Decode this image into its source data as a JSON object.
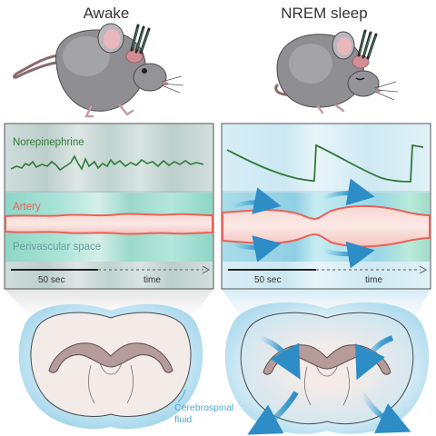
{
  "titles": {
    "awake": "Awake",
    "sleep": "NREM sleep"
  },
  "labels": {
    "norepinephrine": "Norepinephrine",
    "artery": "Artery",
    "perivascular": "Perivascular space",
    "time_scale": "50 sec",
    "time": "time",
    "csf_line1": "Cerebrospinal",
    "csf_line2": "fluid"
  },
  "colors": {
    "norepinephrine_trace": "#2f7a3a",
    "artery_wall": "#e8625a",
    "artery_fill": "#f6c9c3",
    "csf": "#7ec8e3",
    "panel_awake": "#c2d6d4",
    "panel_sleep": "#cde9f3"
  },
  "icons": [
    "mouse-awake-icon",
    "mouse-sleeping-icon",
    "brain-section-icon",
    "csf-flow-arrow-icon"
  ]
}
